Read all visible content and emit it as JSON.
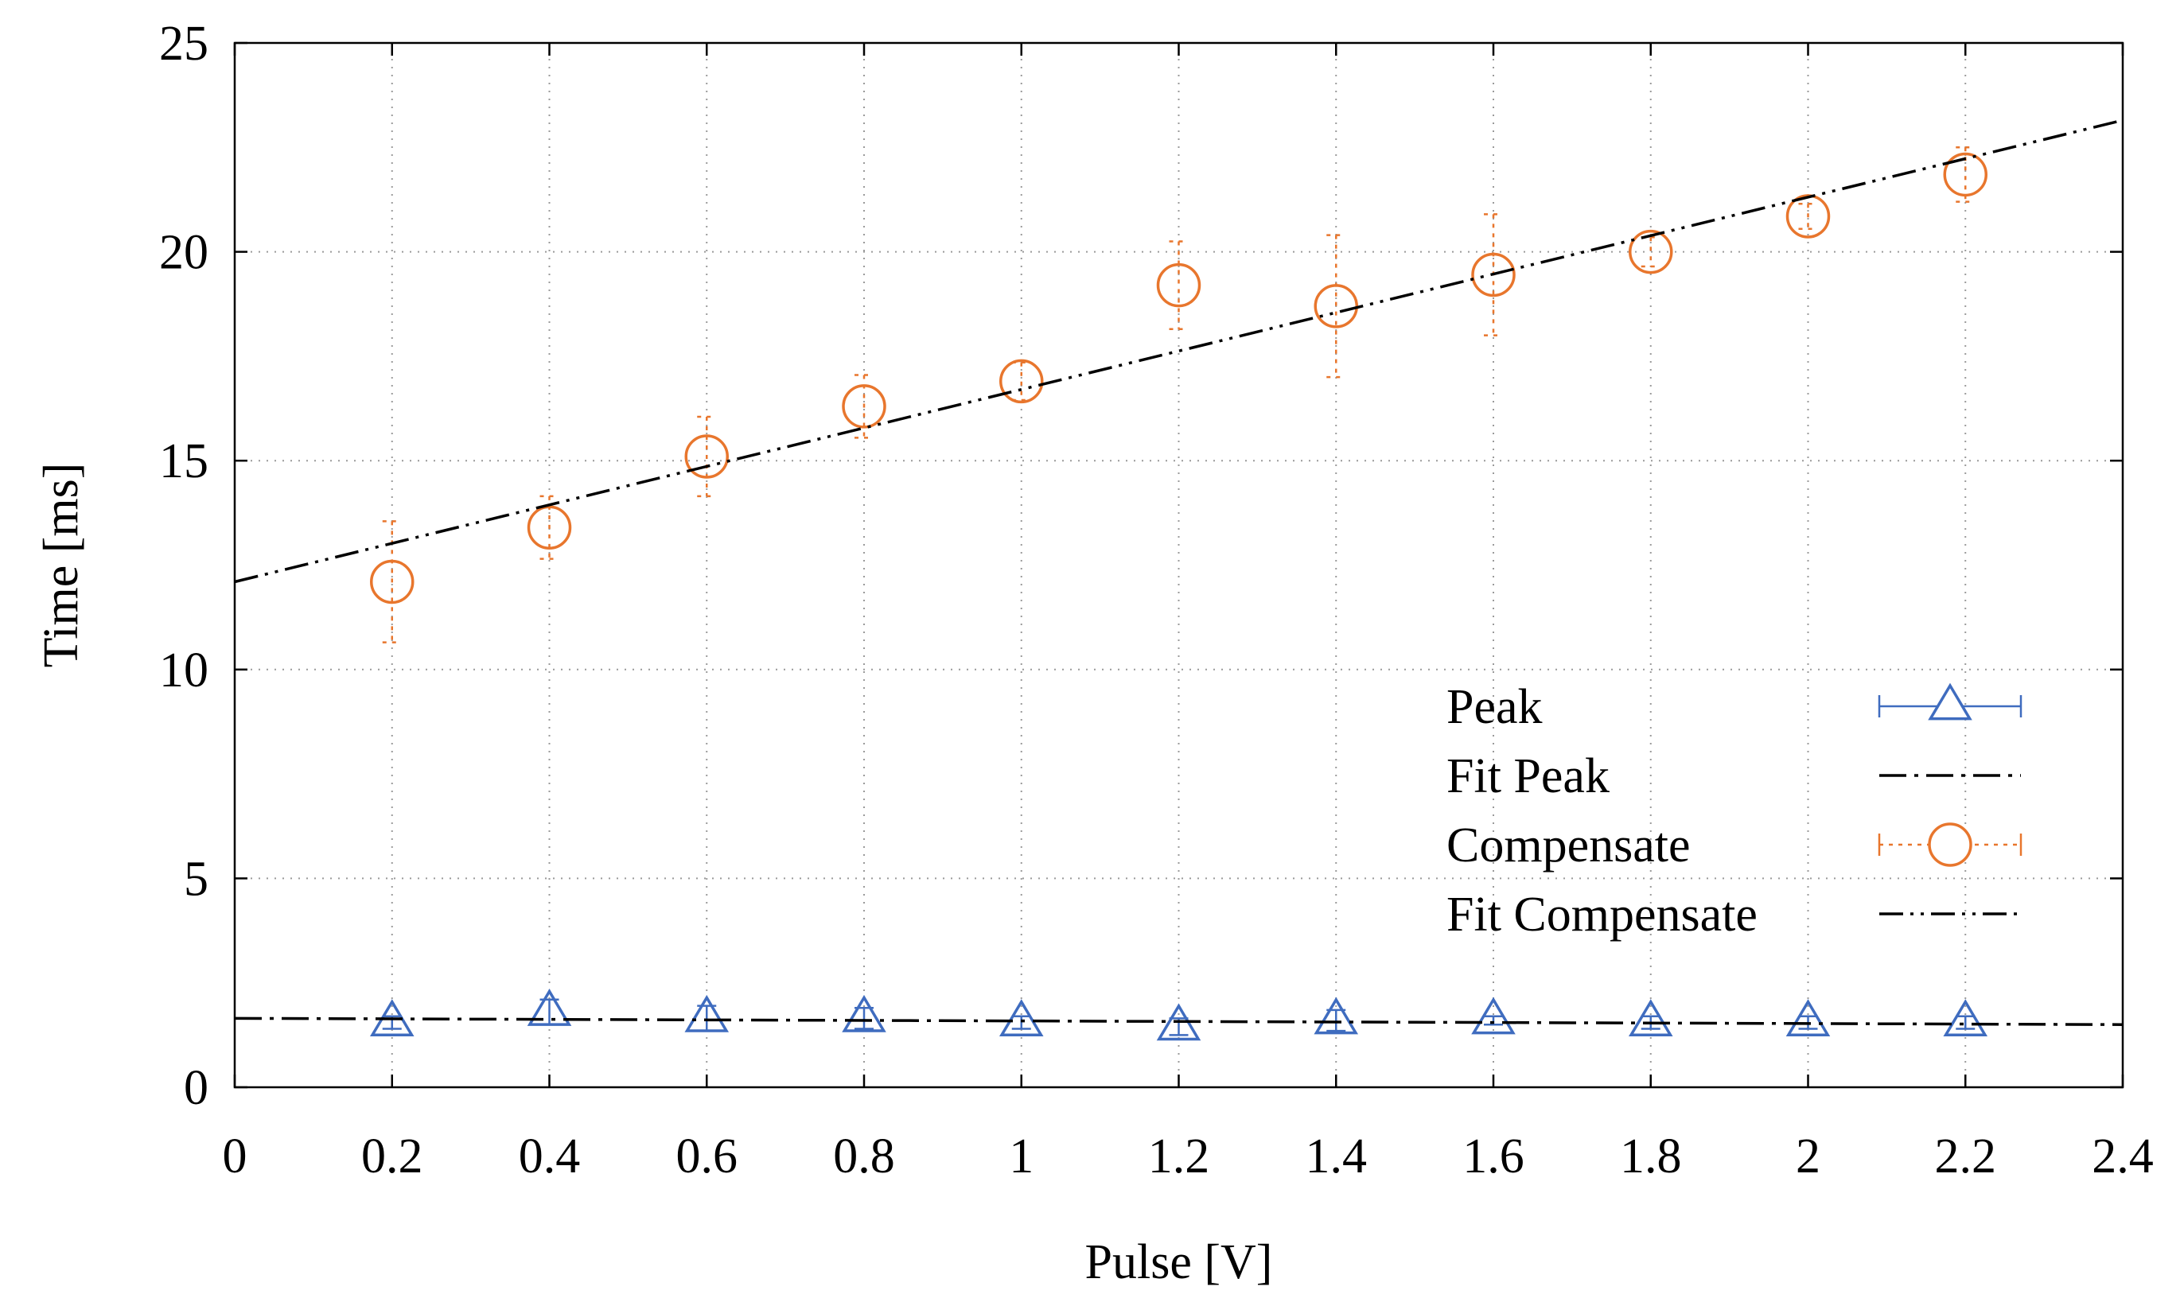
{
  "chart_data": {
    "type": "scatter",
    "title": "",
    "xlabel": "Pulse [V]",
    "ylabel": "Time [ms]",
    "xlim": [
      0,
      2.4
    ],
    "ylim": [
      0,
      25
    ],
    "x_ticks": [
      {
        "value": 0,
        "label": "0"
      },
      {
        "value": 0.2,
        "label": "0.2"
      },
      {
        "value": 0.4,
        "label": "0.4"
      },
      {
        "value": 0.6,
        "label": "0.6"
      },
      {
        "value": 0.8,
        "label": "0.8"
      },
      {
        "value": 1,
        "label": "1"
      },
      {
        "value": 1.2,
        "label": "1.2"
      },
      {
        "value": 1.4,
        "label": "1.4"
      },
      {
        "value": 1.6,
        "label": "1.6"
      },
      {
        "value": 1.8,
        "label": "1.8"
      },
      {
        "value": 2,
        "label": "2"
      },
      {
        "value": 2.2,
        "label": "2.2"
      },
      {
        "value": 2.4,
        "label": "2.4"
      }
    ],
    "y_ticks": [
      {
        "value": 0,
        "label": "0"
      },
      {
        "value": 5,
        "label": "5"
      },
      {
        "value": 10,
        "label": "10"
      },
      {
        "value": 15,
        "label": "15"
      },
      {
        "value": 20,
        "label": "20"
      },
      {
        "value": 25,
        "label": "25"
      }
    ],
    "grid": true,
    "legend_position": "bottom-right",
    "series": [
      {
        "name": "Peak",
        "kind": "points",
        "marker": "triangle",
        "color": "#3f6cbf",
        "x": [
          0.2,
          0.4,
          0.6,
          0.8,
          1.0,
          1.2,
          1.4,
          1.6,
          1.8,
          2.0,
          2.2
        ],
        "y": [
          1.55,
          1.8,
          1.65,
          1.65,
          1.55,
          1.45,
          1.6,
          1.6,
          1.55,
          1.55,
          1.55
        ],
        "yerr": [
          0.15,
          0.3,
          0.3,
          0.25,
          0.15,
          0.2,
          0.25,
          0.1,
          0.15,
          0.15,
          0.15
        ]
      },
      {
        "name": "Fit Peak",
        "kind": "line",
        "dash": "dash-dot",
        "color": "#000000",
        "x": [
          0,
          2.4
        ],
        "y": [
          1.65,
          1.5
        ]
      },
      {
        "name": "Compensate",
        "kind": "points",
        "marker": "circle",
        "color": "#e8762d",
        "x": [
          0.2,
          0.4,
          0.6,
          0.8,
          1.0,
          1.2,
          1.4,
          1.6,
          1.8,
          2.0,
          2.2
        ],
        "y": [
          12.1,
          13.4,
          15.1,
          16.3,
          16.9,
          19.2,
          18.7,
          19.45,
          20.0,
          20.85,
          21.85
        ],
        "yerr": [
          1.45,
          0.75,
          0.95,
          0.75,
          0.45,
          1.05,
          1.7,
          1.45,
          0.35,
          0.3,
          0.65
        ]
      },
      {
        "name": "Fit Compensate",
        "kind": "line",
        "dash": "dash-dot-dot",
        "color": "#000000",
        "x": [
          0,
          2.4
        ],
        "y": [
          12.1,
          23.15
        ]
      }
    ]
  }
}
